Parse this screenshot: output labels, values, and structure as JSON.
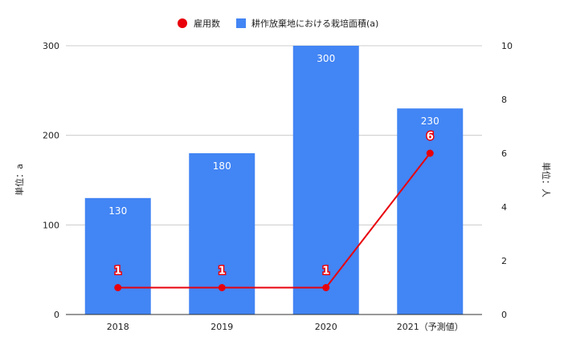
{
  "chart_data": {
    "type": "bar",
    "categories": [
      "2018",
      "2019",
      "2020",
      "2021（予測値）"
    ],
    "series": [
      {
        "name": "耕作放棄地における栽培面積(a)",
        "type": "bar",
        "axis": "left",
        "values": [
          130,
          180,
          300,
          230
        ],
        "color": "#4285f4"
      },
      {
        "name": "雇用数",
        "type": "line",
        "axis": "right",
        "values": [
          1,
          1,
          1,
          6
        ],
        "color": "#e8000b"
      }
    ],
    "ylabel_left": "単位：a",
    "ylabel_right": "単位：人",
    "ylim_left": [
      0,
      300
    ],
    "ylim_right": [
      0,
      10
    ],
    "yticks_left": [
      "0",
      "100",
      "200",
      "300"
    ],
    "yticks_right": [
      "0",
      "2",
      "4",
      "6",
      "8",
      "10"
    ],
    "legend": "top",
    "grid": true
  }
}
